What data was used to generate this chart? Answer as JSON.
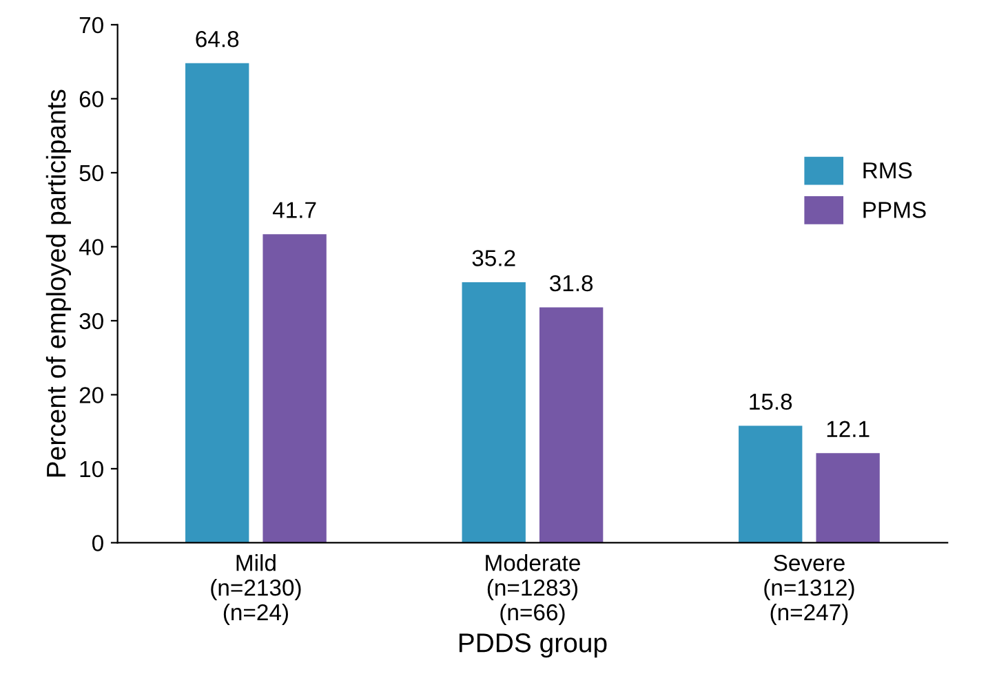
{
  "chart_data": {
    "type": "bar",
    "xlabel": "PDDS group",
    "ylabel": "Percent of employed participants",
    "categories": [
      "Mild\n(n=2130)\n(n=24)",
      "Moderate\n(n=1283)\n(n=66)",
      "Severe\n(n=1312)\n(n=247)"
    ],
    "series": [
      {
        "name": "RMS",
        "color": "#3496bf",
        "values": [
          64.8,
          35.2,
          15.8
        ]
      },
      {
        "name": "PPMS",
        "color": "#7558a6",
        "values": [
          41.7,
          31.8,
          12.1
        ]
      }
    ],
    "ylim": [
      0,
      70
    ],
    "yticks": [
      0,
      10,
      20,
      30,
      40,
      50,
      60,
      70
    ],
    "data_labels": true,
    "legend": "right",
    "grid": false
  }
}
